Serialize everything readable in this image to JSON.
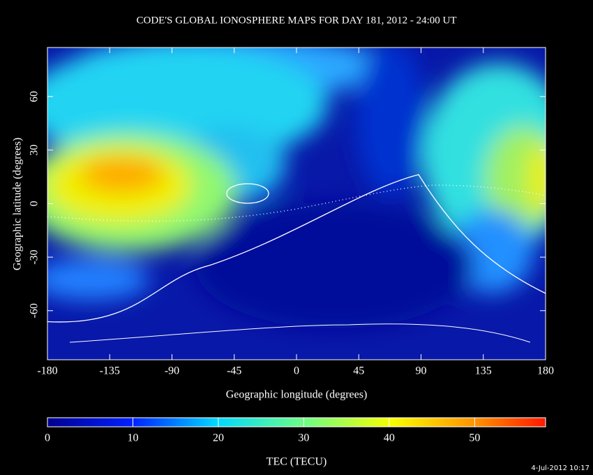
{
  "title": "CODE'S GLOBAL IONOSPHERE MAPS FOR DAY 181, 2012 - 24:00 UT",
  "map": {
    "xlabel": "Geographic longitude (degrees)",
    "ylabel": "Geographic latitude (degrees)",
    "xlim": [
      -180,
      180
    ],
    "ylim": [
      -87.5,
      87.5
    ],
    "xticks": [
      -180,
      -135,
      -90,
      -45,
      0,
      45,
      90,
      135,
      180
    ],
    "yticks": [
      -60,
      -30,
      0,
      30,
      60
    ]
  },
  "colorbar": {
    "label": "TEC (TECU)",
    "lim": [
      0,
      58.3
    ],
    "ticks": [
      0,
      10,
      20,
      30,
      40,
      50
    ]
  },
  "timestamp": "4-Jul-2012 10:17"
}
